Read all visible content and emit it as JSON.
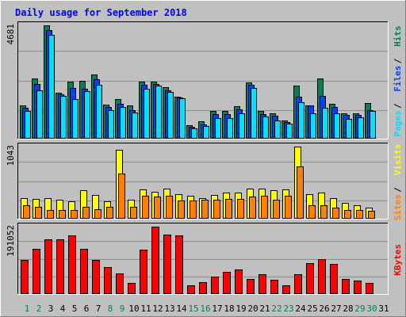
{
  "chart_data": {
    "type": "bar",
    "title": "Daily usage for September 2018",
    "categories": [
      "1",
      "2",
      "3",
      "4",
      "5",
      "6",
      "7",
      "8",
      "9",
      "10",
      "11",
      "12",
      "13",
      "14",
      "15",
      "16",
      "17",
      "18",
      "19",
      "20",
      "21",
      "22",
      "23",
      "24",
      "25",
      "26",
      "27",
      "28",
      "29",
      "30",
      "31"
    ],
    "weekend_days": [
      "1",
      "2",
      "8",
      "9",
      "15",
      "16",
      "22",
      "23",
      "29",
      "30"
    ],
    "panels": [
      {
        "id": "hits_files_pages",
        "ymax_label": "4681",
        "ymax": 4681,
        "side_labels": [
          "Pages",
          "Files",
          "Hits"
        ],
        "side_colors": [
          "#00e0ff",
          "#0040ff",
          "#00805c"
        ],
        "series": [
          {
            "name": "Hits",
            "color": "#00805c",
            "values": [
              1390,
              2480,
              4681,
              1890,
              2360,
              2380,
              2650,
              1400,
              1630,
              1380,
              2360,
              2370,
              2140,
              1750,
              550,
              730,
              1160,
              1140,
              1330,
              2320,
              1150,
              1060,
              760,
              2190,
              1390,
              2480,
              1450,
              1060,
              1040,
              1480,
              0
            ]
          },
          {
            "name": "Files",
            "color": "#0040ff",
            "values": [
              1270,
              2250,
              4480,
              1820,
              2080,
              2060,
              2460,
              1320,
              1450,
              1180,
              2220,
              2260,
              1990,
              1690,
              480,
              600,
              1000,
              1010,
              1200,
              2230,
              1020,
              960,
              690,
              1740,
              1360,
              1770,
              1300,
              970,
              970,
              1170,
              0
            ]
          },
          {
            "name": "Pages",
            "color": "#00e0ff",
            "values": [
              1140,
              2010,
              4300,
              1770,
              1650,
              1980,
              2220,
              1180,
              1320,
              1070,
              2070,
              2180,
              1920,
              1660,
              430,
              530,
              840,
              850,
              1060,
              2090,
              930,
              760,
              610,
              1520,
              1050,
              1280,
              1060,
              830,
              870,
              1160,
              0
            ]
          }
        ]
      },
      {
        "id": "visits_sites",
        "ymax_label": "1043",
        "ymax": 1043,
        "side_labels": [
          "Sites",
          "Visits"
        ],
        "side_colors": [
          "#ff8000",
          "#ffff00"
        ],
        "series": [
          {
            "name": "Visits",
            "color": "#ffff00",
            "values": [
              300,
              290,
              300,
              280,
              250,
              410,
              340,
              250,
              1000,
              270,
              420,
              390,
              440,
              350,
              330,
              300,
              340,
              380,
              380,
              440,
              440,
              410,
              420,
              1043,
              350,
              380,
              300,
              230,
              200,
              160,
              0
            ]
          },
          {
            "name": "Sites",
            "color": "#ff8000",
            "values": [
              190,
              170,
              130,
              130,
              130,
              170,
              140,
              170,
              650,
              170,
              330,
              320,
              330,
              260,
              260,
              280,
              280,
              290,
              290,
              320,
              330,
              270,
              330,
              760,
              190,
              190,
              160,
              130,
              130,
              120,
              0
            ]
          }
        ]
      },
      {
        "id": "kbytes",
        "ymax_label": "191052",
        "ymax": 191052,
        "side_labels": [
          "KBytes"
        ],
        "side_colors": [
          "#ff0000"
        ],
        "series": [
          {
            "name": "KBytes",
            "color": "#ff0000",
            "values": [
              95600,
              128000,
              154000,
              154000,
              166000,
              129000,
              96300,
              76200,
              57700,
              31000,
              126000,
              191052,
              169000,
              166000,
              24800,
              33000,
              49700,
              62800,
              70100,
              43400,
              56600,
              40000,
              24800,
              55600,
              87500,
              100000,
              84300,
              41900,
              39000,
              31400,
              0
            ]
          }
        ]
      }
    ]
  }
}
